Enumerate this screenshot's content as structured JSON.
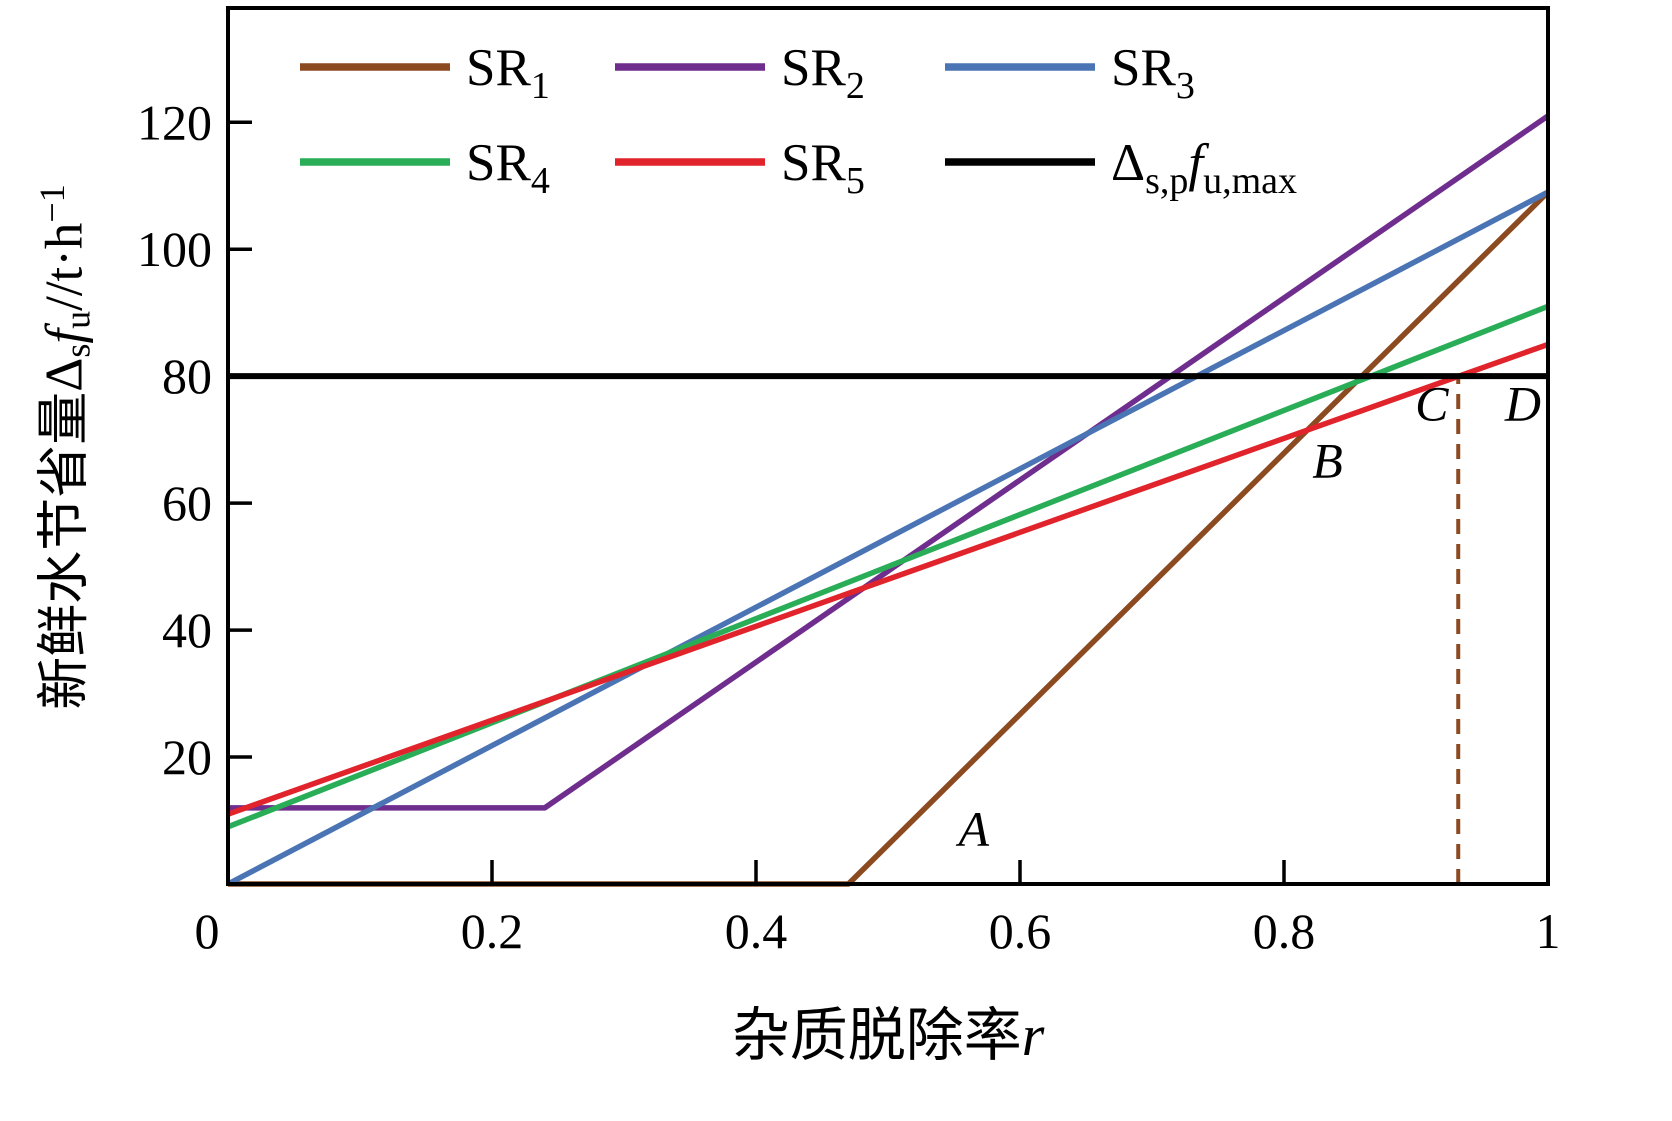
{
  "figure": {
    "background": "#ffffff",
    "border_color": "#000000"
  },
  "chart_data": {
    "type": "line",
    "title": "",
    "xlabel": {
      "text": "杂质脱除率",
      "var": "r"
    },
    "ylabel": {
      "prefix": "新鲜水节省量Δ",
      "sub1": "s",
      "f": "f",
      "sub2": "u",
      "mid": "//t·h",
      "sup": "−1"
    },
    "xlim": [
      0,
      1
    ],
    "ylim": [
      0,
      138
    ],
    "grid": false,
    "legend_position": "top-left-inside",
    "x_ticks": [
      {
        "value": 0,
        "label": "0"
      },
      {
        "value": 0.2,
        "label": "0.2"
      },
      {
        "value": 0.4,
        "label": "0.4"
      },
      {
        "value": 0.6,
        "label": "0.6"
      },
      {
        "value": 0.8,
        "label": "0.8"
      },
      {
        "value": 1,
        "label": "1"
      }
    ],
    "y_ticks": [
      {
        "value": 20,
        "label": "20"
      },
      {
        "value": 40,
        "label": "40"
      },
      {
        "value": 60,
        "label": "60"
      },
      {
        "value": 80,
        "label": "80"
      },
      {
        "value": 100,
        "label": "100"
      },
      {
        "value": 120,
        "label": "120"
      }
    ],
    "series": [
      {
        "name": "SR1",
        "label": {
          "text": "SR",
          "sub": "1"
        },
        "color": "#8c4a21",
        "points": [
          [
            0,
            0
          ],
          [
            0.47,
            0
          ],
          [
            1,
            109
          ]
        ]
      },
      {
        "name": "SR2",
        "label": {
          "text": "SR",
          "sub": "2"
        },
        "color": "#6f2d8e",
        "points": [
          [
            0,
            12
          ],
          [
            0.24,
            12
          ],
          [
            1,
            121
          ]
        ]
      },
      {
        "name": "SR3",
        "label": {
          "text": "SR",
          "sub": "3"
        },
        "color": "#4a74b4",
        "points": [
          [
            0,
            0
          ],
          [
            1,
            109
          ]
        ]
      },
      {
        "name": "SR4",
        "label": {
          "text": "SR",
          "sub": "4"
        },
        "color": "#29ad57",
        "points": [
          [
            0,
            9
          ],
          [
            1,
            91
          ]
        ]
      },
      {
        "name": "SR5",
        "label": {
          "text": "SR",
          "sub": "5"
        },
        "color": "#e1242b",
        "points": [
          [
            0,
            11
          ],
          [
            1,
            85
          ]
        ]
      },
      {
        "name": "max",
        "label": {
          "pre": "Δ",
          "presub": "s,p",
          "f": "f",
          "fsub": "u,max"
        },
        "color": "#000000",
        "points": [
          [
            0,
            80
          ],
          [
            1,
            80
          ]
        ]
      }
    ],
    "reference_line": {
      "x": 0.932,
      "y_from": 0,
      "y_to": 80,
      "color": "#8c4a21",
      "style": "dashed"
    },
    "annotations": [
      {
        "label": "A",
        "x": 0.565,
        "y": 6
      },
      {
        "label": "B",
        "x": 0.833,
        "y": 64
      },
      {
        "label": "C",
        "x": 0.912,
        "y": 73
      },
      {
        "label": "D",
        "x": 0.981,
        "y": 73
      }
    ]
  }
}
